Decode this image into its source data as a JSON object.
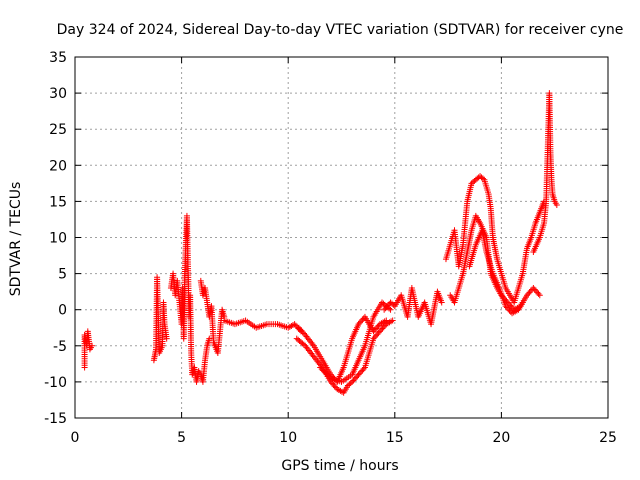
{
  "chart_data": {
    "type": "scatter",
    "title": "Day 324 of 2024, Sidereal Day-to-day VTEC variation (SDTVAR) for receiver cyne",
    "xlabel": "GPS time / hours",
    "ylabel": "SDTVAR / TECUs",
    "xlim": [
      0,
      25
    ],
    "ylim": [
      -15,
      35
    ],
    "xticks": [
      0,
      5,
      10,
      15,
      20,
      25
    ],
    "yticks": [
      -15,
      -10,
      -5,
      0,
      5,
      10,
      15,
      20,
      25,
      30,
      35
    ],
    "grid": true,
    "marker": "+",
    "series": [
      {
        "name": "SDTVAR",
        "color": "#ff0000",
        "traces": [
          [
            [
              0.45,
              -8
            ],
            [
              0.45,
              -3.5
            ],
            [
              0.55,
              -5
            ],
            [
              0.6,
              -3
            ],
            [
              0.7,
              -5.5
            ],
            [
              0.8,
              -5
            ]
          ],
          [
            [
              3.7,
              -7
            ],
            [
              3.8,
              -5.5
            ],
            [
              3.85,
              4.5
            ],
            [
              3.95,
              -6
            ],
            [
              4.1,
              -5
            ],
            [
              4.15,
              1
            ],
            [
              4.2,
              -2
            ],
            [
              4.3,
              -4
            ]
          ],
          [
            [
              4.5,
              3
            ],
            [
              4.6,
              5
            ],
            [
              4.7,
              2
            ],
            [
              4.8,
              4
            ],
            [
              4.9,
              1
            ],
            [
              5.0,
              -2
            ],
            [
              5.05,
              3
            ],
            [
              5.1,
              -4
            ],
            [
              5.15,
              5
            ],
            [
              5.2,
              9
            ],
            [
              5.25,
              13
            ],
            [
              5.3,
              6
            ],
            [
              5.35,
              -1
            ],
            [
              5.4,
              2
            ],
            [
              5.45,
              -6
            ],
            [
              5.5,
              -9
            ],
            [
              5.6,
              -8
            ],
            [
              5.7,
              -10
            ],
            [
              5.8,
              -8.5
            ],
            [
              5.9,
              -9
            ],
            [
              6.0,
              -10
            ],
            [
              6.1,
              -7
            ],
            [
              6.2,
              -5
            ],
            [
              6.3,
              -4
            ]
          ],
          [
            [
              5.9,
              4
            ],
            [
              6.0,
              2
            ],
            [
              6.1,
              3
            ],
            [
              6.2,
              1
            ],
            [
              6.3,
              -1
            ],
            [
              6.4,
              0.5
            ],
            [
              6.5,
              -4.5
            ],
            [
              6.7,
              -6
            ],
            [
              6.9,
              0
            ],
            [
              7.0,
              -1
            ]
          ],
          [
            [
              7.0,
              -1.5
            ],
            [
              7.5,
              -2
            ],
            [
              8.0,
              -1.5
            ],
            [
              8.5,
              -2.5
            ],
            [
              9.0,
              -2
            ],
            [
              9.5,
              -2
            ],
            [
              10.0,
              -2.5
            ],
            [
              10.3,
              -2
            ],
            [
              10.6,
              -3
            ]
          ],
          [
            [
              10.4,
              -4
            ],
            [
              10.8,
              -5
            ],
            [
              11.2,
              -6.5
            ],
            [
              11.6,
              -8
            ],
            [
              12.0,
              -10
            ],
            [
              12.3,
              -11
            ],
            [
              12.6,
              -11.5
            ],
            [
              12.8,
              -10.5
            ],
            [
              13.0,
              -10
            ],
            [
              13.3,
              -9
            ],
            [
              13.6,
              -8
            ],
            [
              13.8,
              -6
            ],
            [
              14.0,
              -4
            ],
            [
              14.3,
              -3
            ],
            [
              14.6,
              -2
            ],
            [
              14.9,
              -1.5
            ]
          ],
          [
            [
              10.5,
              -2.5
            ],
            [
              10.8,
              -3.5
            ],
            [
              11.2,
              -5
            ],
            [
              11.6,
              -7
            ],
            [
              12.0,
              -9
            ],
            [
              12.3,
              -10
            ],
            [
              12.6,
              -8
            ],
            [
              12.8,
              -6
            ],
            [
              13.0,
              -4
            ],
            [
              13.3,
              -2
            ],
            [
              13.6,
              -1
            ],
            [
              14.0,
              -3
            ],
            [
              14.3,
              -2
            ],
            [
              14.6,
              -1.5
            ]
          ],
          [
            [
              11.5,
              -8
            ],
            [
              12.0,
              -9.5
            ],
            [
              12.5,
              -10
            ],
            [
              13.0,
              -9
            ],
            [
              13.3,
              -7
            ],
            [
              13.6,
              -5
            ],
            [
              14.0,
              -1
            ],
            [
              14.4,
              1
            ],
            [
              14.8,
              0
            ]
          ],
          [
            [
              14.5,
              0
            ],
            [
              14.8,
              1
            ],
            [
              15.0,
              0.5
            ],
            [
              15.3,
              2
            ],
            [
              15.6,
              -1
            ],
            [
              15.8,
              3
            ],
            [
              16.1,
              -1
            ],
            [
              16.4,
              1
            ],
            [
              16.7,
              -2
            ],
            [
              17.0,
              2.5
            ],
            [
              17.2,
              1
            ]
          ],
          [
            [
              17.4,
              7
            ],
            [
              17.6,
              9
            ],
            [
              17.8,
              11
            ],
            [
              18.0,
              6
            ],
            [
              18.2,
              9
            ],
            [
              18.4,
              15
            ],
            [
              18.6,
              17.5
            ],
            [
              18.8,
              18
            ],
            [
              19.0,
              18.5
            ],
            [
              19.2,
              18
            ],
            [
              19.4,
              16
            ],
            [
              19.5,
              14
            ],
            [
              19.6,
              10
            ],
            [
              19.8,
              7
            ],
            [
              20.0,
              5
            ],
            [
              20.2,
              3
            ],
            [
              20.4,
              2
            ],
            [
              20.6,
              1
            ],
            [
              20.8,
              3
            ],
            [
              21.0,
              5
            ],
            [
              21.2,
              8.5
            ],
            [
              21.4,
              10
            ],
            [
              21.6,
              12
            ],
            [
              21.8,
              13.5
            ],
            [
              22.0,
              15
            ]
          ],
          [
            [
              17.6,
              2
            ],
            [
              17.8,
              1
            ],
            [
              18.0,
              3
            ],
            [
              18.2,
              5
            ],
            [
              18.4,
              8
            ],
            [
              18.6,
              11
            ],
            [
              18.8,
              13
            ],
            [
              19.0,
              12
            ],
            [
              19.3,
              10
            ],
            [
              19.5,
              5
            ],
            [
              19.8,
              3
            ],
            [
              20.0,
              2
            ],
            [
              20.3,
              1
            ],
            [
              20.6,
              0
            ],
            [
              20.9,
              0.5
            ],
            [
              21.2,
              2
            ],
            [
              21.5,
              3
            ],
            [
              21.8,
              2
            ]
          ],
          [
            [
              18.5,
              6
            ],
            [
              18.8,
              9
            ],
            [
              19.1,
              11
            ],
            [
              19.3,
              8
            ],
            [
              19.6,
              5
            ],
            [
              19.9,
              3
            ],
            [
              20.2,
              0.5
            ],
            [
              20.5,
              -0.5
            ],
            [
              20.8,
              0
            ],
            [
              21.0,
              1
            ]
          ],
          [
            [
              21.5,
              8
            ],
            [
              21.8,
              10
            ],
            [
              22.0,
              12
            ],
            [
              22.1,
              15
            ],
            [
              22.15,
              20
            ],
            [
              22.2,
              25
            ],
            [
              22.25,
              30
            ],
            [
              22.3,
              22
            ],
            [
              22.35,
              18
            ],
            [
              22.4,
              16
            ],
            [
              22.5,
              15
            ],
            [
              22.6,
              14.5
            ]
          ]
        ]
      }
    ]
  }
}
